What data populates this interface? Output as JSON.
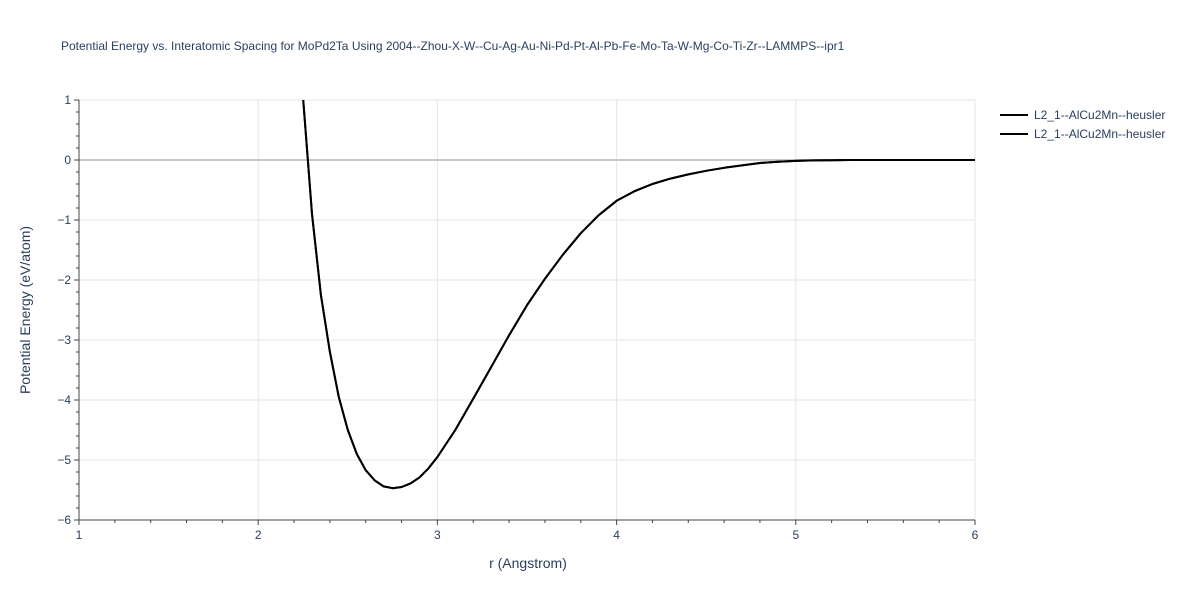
{
  "chart_data": {
    "type": "line",
    "title": "Potential Energy vs. Interatomic Spacing for MoPd2Ta Using 2004--Zhou-X-W--Cu-Ag-Au-Ni-Pd-Pt-Al-Pb-Fe-Mo-Ta-W-Mg-Co-Ti-Zr--LAMMPS--ipr1",
    "xlabel": "r (Angstrom)",
    "ylabel": "Potential Energy (eV/atom)",
    "xlim": [
      1,
      6
    ],
    "ylim": [
      -6,
      1
    ],
    "xticks": [
      1,
      2,
      3,
      4,
      5,
      6
    ],
    "xtick_labels": [
      "1",
      "2",
      "3",
      "4",
      "5",
      "6"
    ],
    "yticks": [
      1,
      0,
      -1,
      -2,
      -3,
      -4,
      -5,
      -6
    ],
    "ytick_labels": [
      "1",
      "0",
      "−1",
      "−2",
      "−3",
      "−4",
      "−5",
      "−6"
    ],
    "grid": true,
    "legend_position": "top-right",
    "colors": {
      "line": "#000000",
      "grid": "#e5e5e5",
      "zeroline": "#c8c8c8",
      "text": "#2a3f5f",
      "axis": "#444444"
    },
    "series": [
      {
        "name": "L2_1--AlCu2Mn--heusler",
        "color": "#000000",
        "x": [
          2.25,
          2.3,
          2.35,
          2.4,
          2.45,
          2.5,
          2.55,
          2.6,
          2.65,
          2.7,
          2.75,
          2.8,
          2.85,
          2.9,
          2.95,
          3.0,
          3.1,
          3.2,
          3.3,
          3.4,
          3.5,
          3.6,
          3.7,
          3.8,
          3.9,
          4.0,
          4.1,
          4.2,
          4.3,
          4.4,
          4.5,
          4.6,
          4.7,
          4.8,
          4.9,
          5.0,
          5.1,
          5.2,
          5.3,
          5.4,
          5.6,
          5.8,
          6.0
        ],
        "y": [
          1.05,
          -0.9,
          -2.25,
          -3.2,
          -3.95,
          -4.5,
          -4.9,
          -5.17,
          -5.34,
          -5.44,
          -5.47,
          -5.45,
          -5.39,
          -5.29,
          -5.14,
          -4.95,
          -4.5,
          -3.98,
          -3.45,
          -2.92,
          -2.42,
          -1.98,
          -1.58,
          -1.22,
          -0.92,
          -0.68,
          -0.52,
          -0.4,
          -0.31,
          -0.24,
          -0.18,
          -0.13,
          -0.09,
          -0.05,
          -0.03,
          -0.015,
          -0.007,
          -0.003,
          0.0,
          0.0,
          0.0,
          0.0,
          0.0
        ]
      },
      {
        "name": "L2_1--AlCu2Mn--heusler",
        "color": "#000000",
        "x": [
          2.25,
          2.3,
          2.35,
          2.4,
          2.45,
          2.5,
          2.55,
          2.6,
          2.65,
          2.7,
          2.75,
          2.8,
          2.85,
          2.9,
          2.95,
          3.0,
          3.1,
          3.2,
          3.3,
          3.4,
          3.5,
          3.6,
          3.7,
          3.8,
          3.9,
          4.0,
          4.1,
          4.2,
          4.3,
          4.4,
          4.5,
          4.6,
          4.7,
          4.8,
          4.9,
          5.0,
          5.1,
          5.2,
          5.3,
          5.4,
          5.6,
          5.8,
          6.0
        ],
        "y": [
          1.05,
          -0.9,
          -2.25,
          -3.2,
          -3.95,
          -4.5,
          -4.9,
          -5.17,
          -5.34,
          -5.44,
          -5.47,
          -5.45,
          -5.39,
          -5.29,
          -5.14,
          -4.95,
          -4.5,
          -3.98,
          -3.45,
          -2.92,
          -2.42,
          -1.98,
          -1.58,
          -1.22,
          -0.92,
          -0.68,
          -0.52,
          -0.4,
          -0.31,
          -0.24,
          -0.18,
          -0.13,
          -0.09,
          -0.05,
          -0.03,
          -0.015,
          -0.007,
          -0.003,
          0.0,
          0.0,
          0.0,
          0.0,
          0.0
        ]
      }
    ]
  }
}
